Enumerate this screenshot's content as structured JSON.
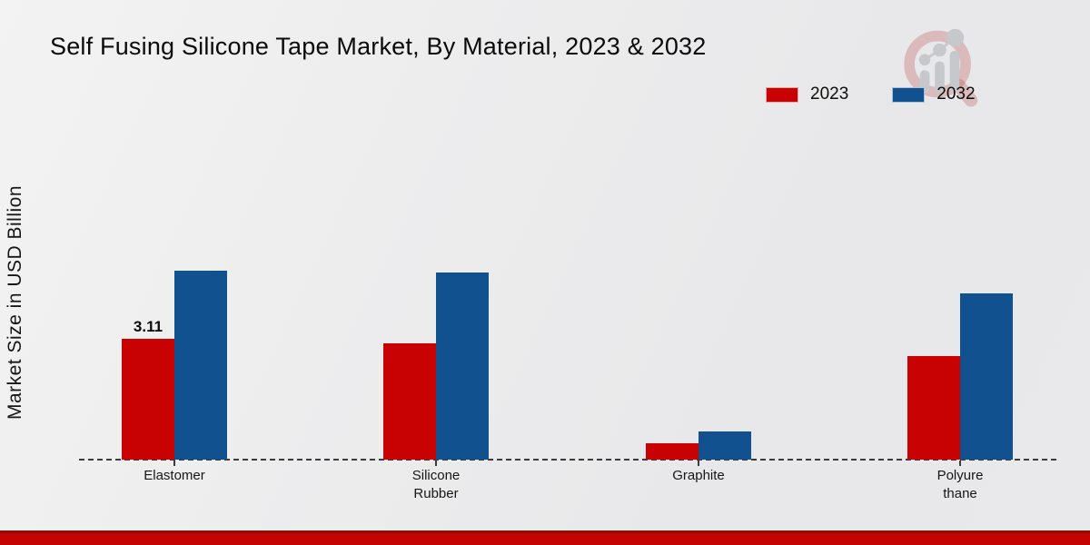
{
  "title": "Self Fusing Silicone Tape Market, By Material, 2023 & 2032",
  "ylabel": "Market Size in USD Billion",
  "legend": [
    {
      "label": "2023",
      "color": "#c80202"
    },
    {
      "label": "2032",
      "color": "#11518f"
    }
  ],
  "colors": {
    "series_2023": "#c80202",
    "series_2032": "#11518f",
    "background": "#ebebed",
    "bottom_stripe": "#c40303",
    "bottom_stripe_edge": "#8e0d06",
    "axis_dash": "#3c3c3c"
  },
  "watermark": {
    "name": "magnifier-bar-chart-logo"
  },
  "chart_data": {
    "type": "bar",
    "categories": [
      "Elastomer",
      "Silicone Rubber",
      "Graphite",
      "Polyurethane"
    ],
    "category_display_lines": [
      [
        "Elastomer"
      ],
      [
        "Silicone",
        "Rubber"
      ],
      [
        "Graphite"
      ],
      [
        "Polyure",
        "thane"
      ]
    ],
    "series": [
      {
        "name": "2023",
        "color": "#c80202",
        "values": [
          3.11,
          3.0,
          0.42,
          2.67
        ]
      },
      {
        "name": "2032",
        "color": "#11518f",
        "values": [
          4.86,
          4.82,
          0.72,
          4.28
        ]
      }
    ],
    "bar_labels": [
      [
        "3.11",
        "",
        "",
        ""
      ],
      [
        "",
        "",
        "",
        ""
      ]
    ],
    "title": "Self Fusing Silicone Tape Market, By Material, 2023 & 2032",
    "xlabel": "",
    "ylabel": "Market Size in USD Billion",
    "ylim": [
      0,
      5.5
    ],
    "grid": false,
    "legend_position": "top-right",
    "baseline_style": "dashed"
  }
}
